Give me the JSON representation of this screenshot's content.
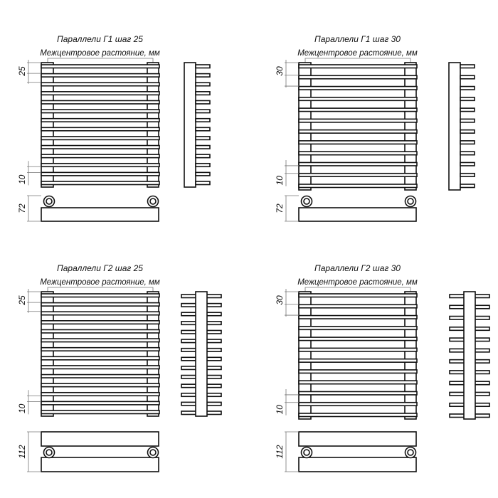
{
  "panels": [
    {
      "title": "Параллели Г1 шаг 25",
      "subtitle": "Межцентровое растояние, мм",
      "step_label": "25",
      "gap_label": "10",
      "depth_label": "72",
      "type": "G1",
      "bar_count": 14
    },
    {
      "title": "Параллели Г1 шаг 30",
      "subtitle": "Межцентровое растояние, мм",
      "step_label": "30",
      "gap_label": "10",
      "depth_label": "72",
      "type": "G1",
      "bar_count": 12
    },
    {
      "title": "Параллели Г2 шаг 25",
      "subtitle": "Межцентровое растояние, мм",
      "step_label": "25",
      "gap_label": "10",
      "depth_label": "112",
      "type": "G2",
      "bar_count": 14
    },
    {
      "title": "Параллели Г2 шаг 30",
      "subtitle": "Межцентровое растояние, мм",
      "step_label": "30",
      "gap_label": "10",
      "depth_label": "112",
      "type": "G2",
      "bar_count": 12
    }
  ],
  "colors": {
    "line": "#111111",
    "dimension": "#777777",
    "background": "#ffffff"
  }
}
